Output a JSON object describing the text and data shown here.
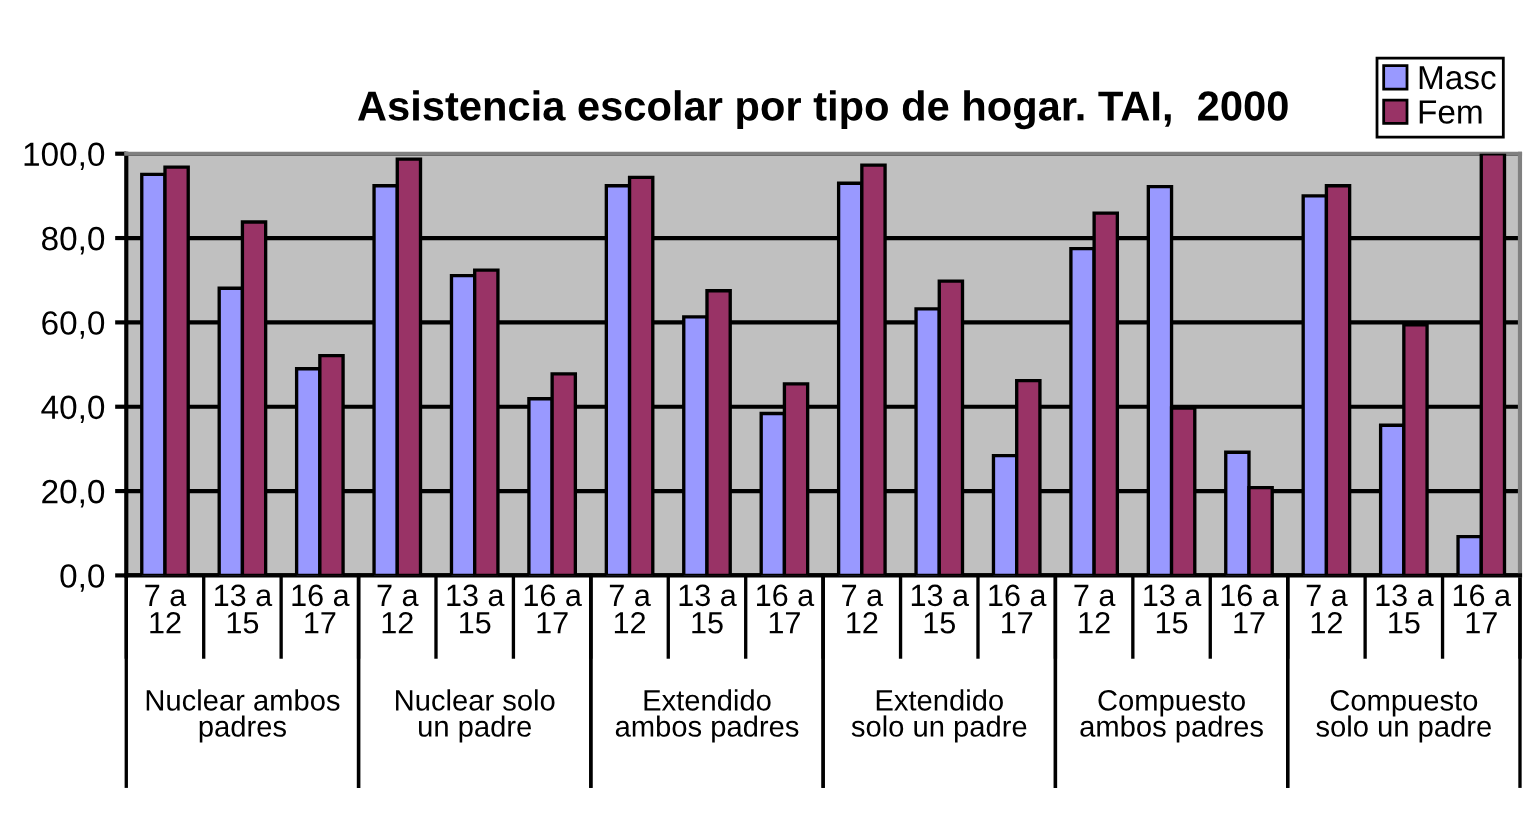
{
  "chart_data": {
    "type": "bar",
    "title": "Asistencia escolar por tipo de hogar. TAI,  2000",
    "categories": [
      "7 a 12",
      "13 a 15",
      "16 a 17",
      "7 a 12",
      "13 a 15",
      "16 a 17",
      "7 a 12",
      "13 a 15",
      "16 a 17",
      "7 a 12",
      "13 a 15",
      "16 a 17",
      "7 a 12",
      "13 a 15",
      "16 a 17",
      "7 a 12",
      "13 a 15",
      "16 a 17"
    ],
    "series": [
      {
        "name": "Masc",
        "color": "#9999ff",
        "values": [
          95.1,
          68.1,
          49.0,
          92.4,
          71.1,
          41.9,
          92.4,
          61.3,
          38.4,
          93.0,
          63.2,
          28.4,
          77.5,
          92.2,
          29.2,
          90.0,
          35.6,
          9.2
        ]
      },
      {
        "name": "Fem",
        "color": "#993366",
        "values": [
          96.8,
          83.8,
          52.1,
          98.7,
          72.4,
          47.8,
          94.4,
          67.5,
          45.4,
          97.3,
          69.8,
          46.2,
          85.9,
          39.7,
          20.8,
          92.4,
          59.4,
          100.0
        ]
      }
    ],
    "annotations": [
      "Nuclear ambos padres",
      "Nuclear solo un padre",
      "Extendido ambos padres",
      "Extendido solo un padre",
      "Compuesto ambos padres",
      "Compuesto solo un padre"
    ],
    "ylim": [
      0,
      100
    ],
    "yticks": [
      {
        "value": 0,
        "label": "0,0"
      },
      {
        "value": 20,
        "label": "20,0"
      },
      {
        "value": 40,
        "label": "40,0"
      },
      {
        "value": 60,
        "label": "60,0"
      },
      {
        "value": 80,
        "label": "80,0"
      },
      {
        "value": 100,
        "label": "100,0"
      }
    ],
    "grid": "y",
    "legend": "top right"
  }
}
